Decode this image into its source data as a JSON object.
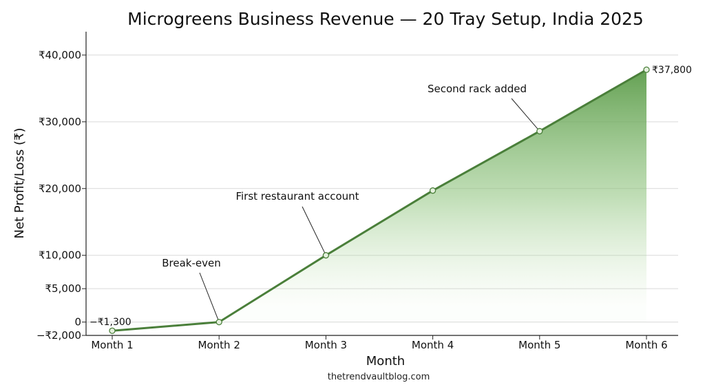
{
  "chart_data": {
    "type": "area",
    "title": "Microgreens Business Revenue — 20 Tray Setup, India 2025",
    "xlabel": "Month",
    "ylabel": "Net Profit/Loss (₹)",
    "categories": [
      "Month 1",
      "Month 2",
      "Month 3",
      "Month 4",
      "Month 5",
      "Month 6"
    ],
    "values": [
      -1300,
      0,
      10000,
      19700,
      28600,
      37800
    ],
    "ylim": [
      -2000,
      43500
    ],
    "y_ticks": [
      {
        "value": -2000,
        "label": "−₹2,000"
      },
      {
        "value": 0,
        "label": "0"
      },
      {
        "value": 5000,
        "label": "₹5,000"
      },
      {
        "value": 10000,
        "label": "₹10,000"
      },
      {
        "value": 20000,
        "label": "₹20,000"
      },
      {
        "value": 30000,
        "label": "₹30,000"
      },
      {
        "value": 40000,
        "label": "₹40,000"
      }
    ],
    "data_labels": [
      {
        "index": 0,
        "text": "−₹1,300"
      },
      {
        "index": 5,
        "text": "₹37,800"
      }
    ],
    "annotations": [
      {
        "index": 1,
        "text": "Break-even"
      },
      {
        "index": 2,
        "text": "First restaurant account"
      },
      {
        "index": 4,
        "text": "Second rack added"
      }
    ],
    "grid": "horizontal",
    "legend": "none",
    "colors": {
      "line": "#4a7f3a",
      "fill": "#5a9a48",
      "marker_fill": "#e4f0dd",
      "grid": "#d9d9d9"
    }
  },
  "footer": {
    "source": "thetrendvaultblog.com"
  }
}
